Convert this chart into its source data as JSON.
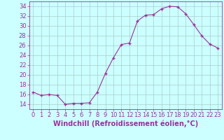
{
  "x": [
    0,
    1,
    2,
    3,
    4,
    5,
    6,
    7,
    8,
    9,
    10,
    11,
    12,
    13,
    14,
    15,
    16,
    17,
    18,
    19,
    20,
    21,
    22,
    23
  ],
  "y": [
    16.5,
    15.8,
    16.0,
    15.8,
    14.0,
    14.2,
    14.2,
    14.3,
    16.5,
    20.3,
    23.5,
    26.2,
    26.5,
    31.0,
    32.2,
    32.3,
    33.5,
    34.0,
    33.9,
    32.5,
    30.3,
    28.0,
    26.3,
    25.5
  ],
  "line_color": "#993399",
  "marker": "+",
  "marker_size": 3.5,
  "marker_lw": 1.0,
  "bg_color": "#ccffff",
  "grid_color": "#aacccc",
  "xlabel": "Windchill (Refroidissement éolien,°C)",
  "ylim": [
    13,
    35
  ],
  "yticks": [
    14,
    16,
    18,
    20,
    22,
    24,
    26,
    28,
    30,
    32,
    34
  ],
  "xticks": [
    0,
    1,
    2,
    3,
    4,
    5,
    6,
    7,
    8,
    9,
    10,
    11,
    12,
    13,
    14,
    15,
    16,
    17,
    18,
    19,
    20,
    21,
    22,
    23
  ],
  "xlim": [
    -0.5,
    23.5
  ],
  "tick_color": "#993399",
  "label_color": "#993399",
  "axis_color": "#993399",
  "tick_fontsize": 6,
  "xlabel_fontsize": 7
}
